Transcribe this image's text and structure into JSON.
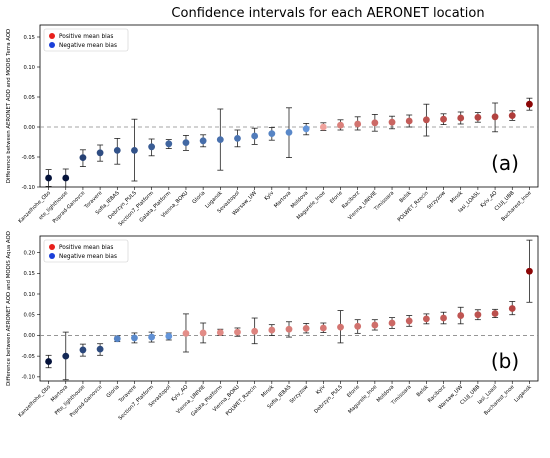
{
  "title": "Confidence intervals for each AERONET location",
  "colors": {
    "positive": "#e8201c",
    "negative": "#1a3fd9",
    "zero_line": "#888888"
  },
  "chart_data": [
    {
      "type": "scatter",
      "panel_label": "(a)",
      "ylabel": "Difference between AERONET AOD and MODIS Terra AOD",
      "ylim": [
        -0.1,
        0.17
      ],
      "yticks": [
        "0.15",
        "0.10",
        "0.05",
        "0.00",
        "-0.05",
        "-0.10"
      ],
      "ytick_values": [
        0.15,
        0.1,
        0.05,
        0.0,
        -0.05,
        -0.1
      ],
      "legend": {
        "position": "top-left",
        "entries": [
          "Positive mean bias",
          "Negative mean bias"
        ]
      },
      "zero_line": "dashed",
      "points": [
        {
          "label": "Kanzelhohe_Obs",
          "mean": -0.085,
          "low": -0.099,
          "high": -0.071
        },
        {
          "label": "ete_lighthouse",
          "mean": -0.085,
          "low": -0.1,
          "high": -0.07
        },
        {
          "label": "Poprad-Ganovce",
          "mean": -0.051,
          "low": -0.066,
          "high": -0.038
        },
        {
          "label": "Toravere",
          "mean": -0.043,
          "low": -0.057,
          "high": -0.03
        },
        {
          "label": "Sofia_IEBAS",
          "mean": -0.039,
          "low": -0.062,
          "high": -0.019
        },
        {
          "label": "Debrzyn_PULS",
          "mean": -0.039,
          "low": -0.09,
          "high": 0.013
        },
        {
          "label": "Section7_Platform",
          "mean": -0.033,
          "low": -0.048,
          "high": -0.02
        },
        {
          "label": "Galata_Platform",
          "mean": -0.028,
          "low": -0.036,
          "high": -0.021
        },
        {
          "label": "Vienna_BOKU",
          "mean": -0.026,
          "low": -0.039,
          "high": -0.014
        },
        {
          "label": "Gloria",
          "mean": -0.023,
          "low": -0.033,
          "high": -0.013
        },
        {
          "label": "Lugansk",
          "mean": -0.021,
          "low": -0.072,
          "high": 0.03
        },
        {
          "label": "Sevastopol",
          "mean": -0.019,
          "low": -0.033,
          "high": -0.005
        },
        {
          "label": "Warsaw_UW",
          "mean": -0.015,
          "low": -0.029,
          "high": -0.002
        },
        {
          "label": "Kyiv",
          "mean": -0.011,
          "low": -0.022,
          "high": -0.001
        },
        {
          "label": "Martova",
          "mean": -0.009,
          "low": -0.051,
          "high": 0.032
        },
        {
          "label": "Moldova",
          "mean": -0.003,
          "low": -0.013,
          "high": 0.006
        },
        {
          "label": "Magurele_Inoe",
          "mean": 0.0,
          "low": -0.006,
          "high": 0.007
        },
        {
          "label": "Eforie",
          "mean": 0.003,
          "low": -0.005,
          "high": 0.012
        },
        {
          "label": "Raciborz",
          "mean": 0.005,
          "low": -0.005,
          "high": 0.017
        },
        {
          "label": "Vienna_UNIVIE",
          "mean": 0.007,
          "low": -0.007,
          "high": 0.021
        },
        {
          "label": "Timisoara",
          "mean": 0.008,
          "low": -0.003,
          "high": 0.018
        },
        {
          "label": "Belsk",
          "mean": 0.01,
          "low": 0.0,
          "high": 0.02
        },
        {
          "label": "POLWET_Rzecin",
          "mean": 0.012,
          "low": -0.015,
          "high": 0.038
        },
        {
          "label": "Strzyzow",
          "mean": 0.013,
          "low": 0.004,
          "high": 0.022
        },
        {
          "label": "Minsk",
          "mean": 0.015,
          "low": 0.005,
          "high": 0.025
        },
        {
          "label": "Iasi_LOASL",
          "mean": 0.016,
          "low": 0.008,
          "high": 0.024
        },
        {
          "label": "Kyiv_AO",
          "mean": 0.017,
          "low": -0.008,
          "high": 0.04
        },
        {
          "label": "CLUJ_UBB",
          "mean": 0.019,
          "low": 0.011,
          "high": 0.027
        },
        {
          "label": "Bucharest_Inoe",
          "mean": 0.038,
          "low": 0.028,
          "high": 0.048
        }
      ]
    },
    {
      "type": "scatter",
      "panel_label": "(b)",
      "ylabel": "Difference between AERONET AOD and MODIS Aqua AOD",
      "ylim": [
        -0.11,
        0.24
      ],
      "yticks": [
        "0.20",
        "0.15",
        "0.10",
        "0.05",
        "0.00",
        "-0.05",
        "-0.10"
      ],
      "ytick_values": [
        0.2,
        0.15,
        0.1,
        0.05,
        0.0,
        -0.05,
        -0.1
      ],
      "legend": {
        "position": "top-left",
        "entries": [
          "Positive mean bias",
          "Negative mean bias"
        ]
      },
      "zero_line": "dashed",
      "points": [
        {
          "label": "Kanzelhohe_Obs",
          "mean": -0.063,
          "low": -0.078,
          "high": -0.048
        },
        {
          "label": "Martova",
          "mean": -0.05,
          "low": -0.107,
          "high": 0.008
        },
        {
          "label": "Pfte_lighthouse",
          "mean": -0.035,
          "low": -0.05,
          "high": -0.021
        },
        {
          "label": "Poprad-Ganovce",
          "mean": -0.033,
          "low": -0.048,
          "high": -0.02
        },
        {
          "label": "Gloria",
          "mean": -0.008,
          "low": -0.015,
          "high": -0.001
        },
        {
          "label": "Toravere",
          "mean": -0.006,
          "low": -0.018,
          "high": 0.006
        },
        {
          "label": "Section7_Platform",
          "mean": -0.004,
          "low": -0.016,
          "high": 0.008
        },
        {
          "label": "Sevastopol",
          "mean": -0.002,
          "low": -0.011,
          "high": 0.006
        },
        {
          "label": "Kyiv_AO",
          "mean": 0.005,
          "low": -0.04,
          "high": 0.052
        },
        {
          "label": "Vienna_UNIVIE",
          "mean": 0.006,
          "low": -0.018,
          "high": 0.03
        },
        {
          "label": "Galata_Platform",
          "mean": 0.007,
          "low": 0.0,
          "high": 0.015
        },
        {
          "label": "Vienna_BOKU",
          "mean": 0.008,
          "low": -0.002,
          "high": 0.018
        },
        {
          "label": "POLWET_Rzecin",
          "mean": 0.01,
          "low": -0.02,
          "high": 0.042
        },
        {
          "label": "Minsk",
          "mean": 0.013,
          "low": 0.0,
          "high": 0.026
        },
        {
          "label": "Sofia_IEBAS",
          "mean": 0.015,
          "low": -0.004,
          "high": 0.033
        },
        {
          "label": "Strzyzow",
          "mean": 0.017,
          "low": 0.006,
          "high": 0.029
        },
        {
          "label": "Kyiv",
          "mean": 0.018,
          "low": 0.007,
          "high": 0.03
        },
        {
          "label": "Debrzyn_PULS",
          "mean": 0.02,
          "low": -0.018,
          "high": 0.06
        },
        {
          "label": "Eforie",
          "mean": 0.022,
          "low": 0.005,
          "high": 0.038
        },
        {
          "label": "Magurele_Inoe",
          "mean": 0.025,
          "low": 0.013,
          "high": 0.038
        },
        {
          "label": "Moldova",
          "mean": 0.03,
          "low": 0.017,
          "high": 0.043
        },
        {
          "label": "Timisoara",
          "mean": 0.035,
          "low": 0.022,
          "high": 0.048
        },
        {
          "label": "Belsk",
          "mean": 0.04,
          "low": 0.028,
          "high": 0.052
        },
        {
          "label": "Raciborz",
          "mean": 0.042,
          "low": 0.028,
          "high": 0.056
        },
        {
          "label": "Warsaw_UW",
          "mean": 0.048,
          "low": 0.028,
          "high": 0.068
        },
        {
          "label": "CLUJ_UBB",
          "mean": 0.05,
          "low": 0.038,
          "high": 0.062
        },
        {
          "label": "Iasi_Loasl",
          "mean": 0.053,
          "low": 0.043,
          "high": 0.063
        },
        {
          "label": "Bucharest_Inoe",
          "mean": 0.065,
          "low": 0.05,
          "high": 0.082
        },
        {
          "label": "Lugansk",
          "mean": 0.155,
          "low": 0.08,
          "high": 0.23
        }
      ]
    }
  ]
}
